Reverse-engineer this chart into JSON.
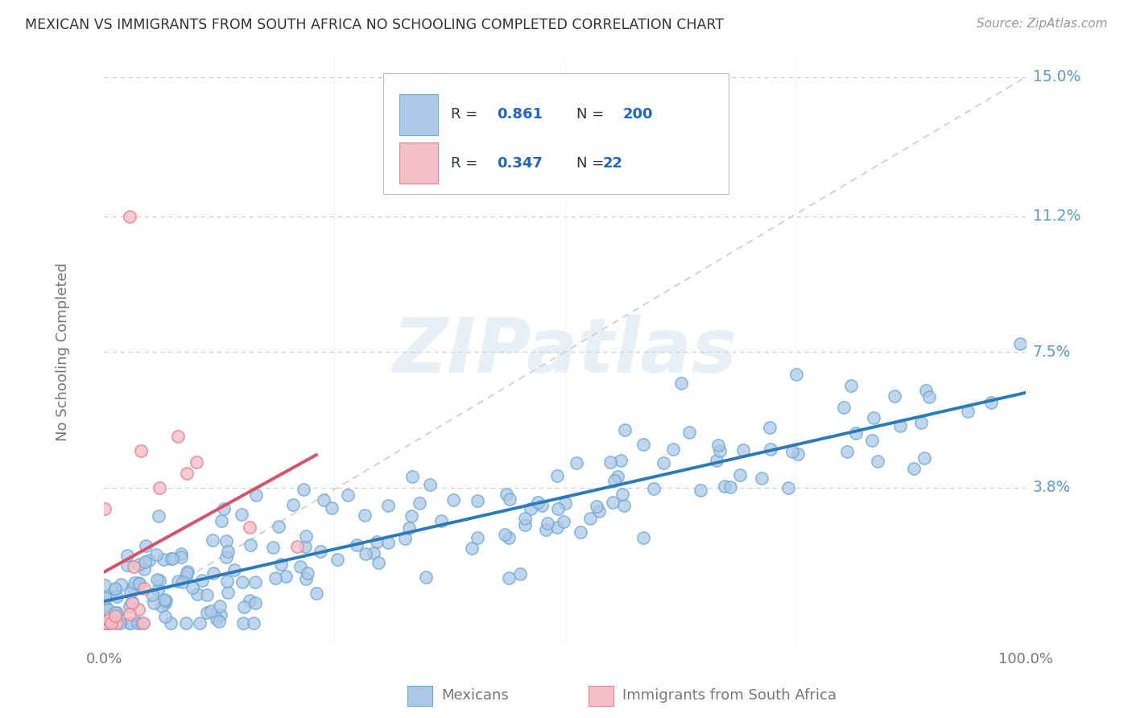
{
  "title": "MEXICAN VS IMMIGRANTS FROM SOUTH AFRICA NO SCHOOLING COMPLETED CORRELATION CHART",
  "source": "Source: ZipAtlas.com",
  "ylabel": "No Schooling Completed",
  "watermark": "ZIPatlas",
  "xlim": [
    0,
    1.0
  ],
  "ylim": [
    -0.005,
    0.155
  ],
  "yticks": [
    0.038,
    0.075,
    0.112,
    0.15
  ],
  "ytick_labels": [
    "3.8%",
    "7.5%",
    "11.2%",
    "15.0%"
  ],
  "xtick_labels": [
    "0.0%",
    "",
    "",
    "",
    "100.0%"
  ],
  "mexican_color": "#adc8e6",
  "mexican_edge_color": "#6aaad4",
  "sa_color": "#f5bfc8",
  "sa_edge_color": "#e8808f",
  "trend_mexican_color": "#2b7bba",
  "trend_sa_color": "#d94f6a",
  "R_mexican": 0.861,
  "N_mexican": 200,
  "R_sa": 0.347,
  "N_sa": 22,
  "background_color": "#ffffff",
  "grid_color": "#cccccc",
  "title_color": "#333333",
  "axis_label_color": "#777777",
  "right_label_color": "#5b9bd5",
  "source_color": "#999999",
  "legend_text_color": "#333333",
  "legend_value_color": "#2266bb"
}
